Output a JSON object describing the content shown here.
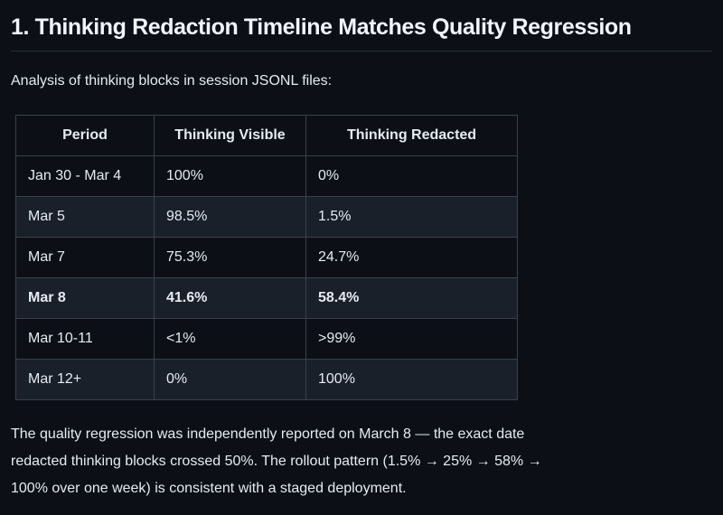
{
  "page": {
    "heading": "1. Thinking Redaction Timeline Matches Quality Regression",
    "intro": "Analysis of thinking blocks in session JSONL files:",
    "table": {
      "headers": [
        "Period",
        "Thinking Visible",
        "Thinking Redacted"
      ],
      "rows": [
        {
          "period": "Jan 30 - Mar 4",
          "visible": "100%",
          "redacted": "0%",
          "emphasis": false
        },
        {
          "period": "Mar 5",
          "visible": "98.5%",
          "redacted": "1.5%",
          "emphasis": false
        },
        {
          "period": "Mar 7",
          "visible": "75.3%",
          "redacted": "24.7%",
          "emphasis": false
        },
        {
          "period": "Mar 8",
          "visible": "41.6%",
          "redacted": "58.4%",
          "emphasis": true
        },
        {
          "period": "Mar 10-11",
          "visible": "<1%",
          "redacted": ">99%",
          "emphasis": false
        },
        {
          "period": "Mar 12+",
          "visible": "0%",
          "redacted": "100%",
          "emphasis": false
        }
      ]
    },
    "conclusion_lines": [
      "The quality regression was independently reported on March 8 — the exact date",
      "redacted thinking blocks crossed 50%. The rollout pattern (1.5% → 25% → 58% →",
      "100% over one week) is consistent with a staged deployment."
    ],
    "colors": {
      "background": "#0c0f16",
      "text": "#e6ebf2",
      "heading_text": "#f2f5fa",
      "table_border": "#3a414c",
      "alt_row_background": "#19202a",
      "heading_rule": "#262d37"
    }
  }
}
